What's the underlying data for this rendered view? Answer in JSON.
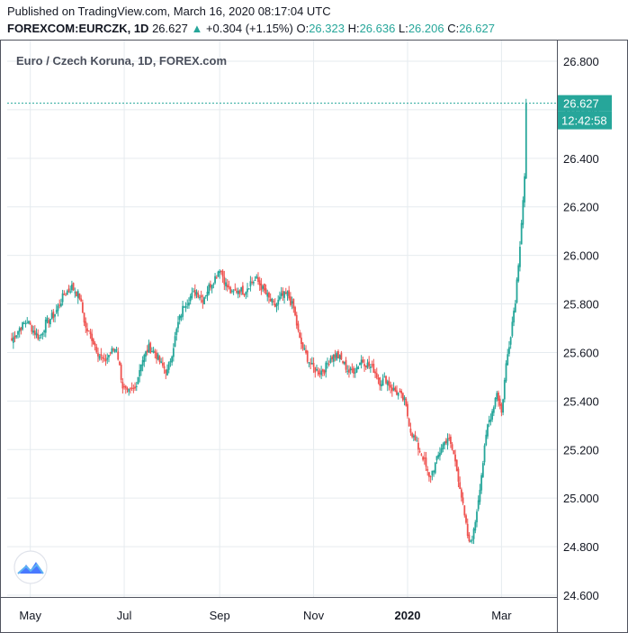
{
  "header": {
    "published": "Published on TradingView.com, March 16, 2020 08:17:04 UTC",
    "symbol": "FOREXCOM:EURCZK, 1D",
    "last": "26.627",
    "arrow": "▲",
    "change": "+0.304 (+1.15%)",
    "o_label": "O:",
    "o_value": "26.323",
    "h_label": "H:",
    "h_value": "26.636",
    "l_label": "L:",
    "l_value": "26.206",
    "c_label": "C:",
    "c_value": "26.627"
  },
  "chart_data": {
    "type": "candlestick",
    "title": "Euro / Czech Koruna, 1D, FOREX.com",
    "ylim": [
      24.6,
      26.8
    ],
    "yticks": [
      "26.800",
      "26.600",
      "26.400",
      "26.200",
      "26.000",
      "25.800",
      "25.600",
      "25.400",
      "25.200",
      "25.000",
      "24.800",
      "24.600"
    ],
    "xticks": [
      {
        "label": "May",
        "day": 12,
        "bold": false
      },
      {
        "label": "Jul",
        "day": 73,
        "bold": false
      },
      {
        "label": "Sep",
        "day": 135,
        "bold": false
      },
      {
        "label": "Nov",
        "day": 196,
        "bold": false
      },
      {
        "label": "2020",
        "day": 257,
        "bold": true
      },
      {
        "label": "Mar",
        "day": 318,
        "bold": false
      }
    ],
    "x_range_days": [
      -3,
      354
    ],
    "last_price": 26.627,
    "last_price_label": "26.627",
    "countdown": "12:42:58",
    "grid": true,
    "colors": {
      "up": "#26a69a",
      "down": "#ef5350",
      "grid": "#e6ebef",
      "price_line": "#26a69a"
    },
    "anchors": [
      [
        0,
        25.65
      ],
      [
        5,
        25.7
      ],
      [
        10,
        25.73
      ],
      [
        14,
        25.69
      ],
      [
        18,
        25.66
      ],
      [
        22,
        25.72
      ],
      [
        28,
        25.76
      ],
      [
        34,
        25.84
      ],
      [
        39,
        25.87
      ],
      [
        44,
        25.83
      ],
      [
        48,
        25.7
      ],
      [
        52,
        25.66
      ],
      [
        56,
        25.6
      ],
      [
        60,
        25.56
      ],
      [
        64,
        25.6
      ],
      [
        68,
        25.62
      ],
      [
        72,
        25.46
      ],
      [
        75,
        25.43
      ],
      [
        80,
        25.45
      ],
      [
        84,
        25.56
      ],
      [
        89,
        25.62
      ],
      [
        93,
        25.6
      ],
      [
        97,
        25.55
      ],
      [
        101,
        25.52
      ],
      [
        104,
        25.6
      ],
      [
        108,
        25.72
      ],
      [
        112,
        25.8
      ],
      [
        116,
        25.83
      ],
      [
        120,
        25.85
      ],
      [
        124,
        25.82
      ],
      [
        128,
        25.87
      ],
      [
        132,
        25.91
      ],
      [
        135,
        25.95
      ],
      [
        139,
        25.88
      ],
      [
        143,
        25.84
      ],
      [
        147,
        25.86
      ],
      [
        151,
        25.85
      ],
      [
        155,
        25.89
      ],
      [
        159,
        25.9
      ],
      [
        163,
        25.86
      ],
      [
        167,
        25.82
      ],
      [
        171,
        25.79
      ],
      [
        175,
        25.83
      ],
      [
        179,
        25.84
      ],
      [
        183,
        25.78
      ],
      [
        187,
        25.65
      ],
      [
        191,
        25.59
      ],
      [
        195,
        25.54
      ],
      [
        199,
        25.52
      ],
      [
        203,
        25.53
      ],
      [
        207,
        25.58
      ],
      [
        211,
        25.59
      ],
      [
        215,
        25.56
      ],
      [
        219,
        25.52
      ],
      [
        223,
        25.53
      ],
      [
        227,
        25.57
      ],
      [
        231,
        25.55
      ],
      [
        235,
        25.53
      ],
      [
        239,
        25.48
      ],
      [
        243,
        25.49
      ],
      [
        247,
        25.45
      ],
      [
        251,
        25.43
      ],
      [
        255,
        25.4
      ],
      [
        259,
        25.28
      ],
      [
        263,
        25.22
      ],
      [
        267,
        25.17
      ],
      [
        271,
        25.08
      ],
      [
        275,
        25.14
      ],
      [
        279,
        25.21
      ],
      [
        283,
        25.25
      ],
      [
        287,
        25.18
      ],
      [
        291,
        25.05
      ],
      [
        294,
        24.92
      ],
      [
        297,
        24.81
      ],
      [
        300,
        24.86
      ],
      [
        303,
        25.0
      ],
      [
        306,
        25.15
      ],
      [
        309,
        25.3
      ],
      [
        312,
        25.36
      ],
      [
        315,
        25.44
      ],
      [
        318,
        25.35
      ],
      [
        321,
        25.55
      ],
      [
        324,
        25.68
      ],
      [
        327,
        25.82
      ],
      [
        330,
        26.05
      ],
      [
        333,
        26.32
      ],
      [
        334,
        26.627
      ]
    ]
  }
}
